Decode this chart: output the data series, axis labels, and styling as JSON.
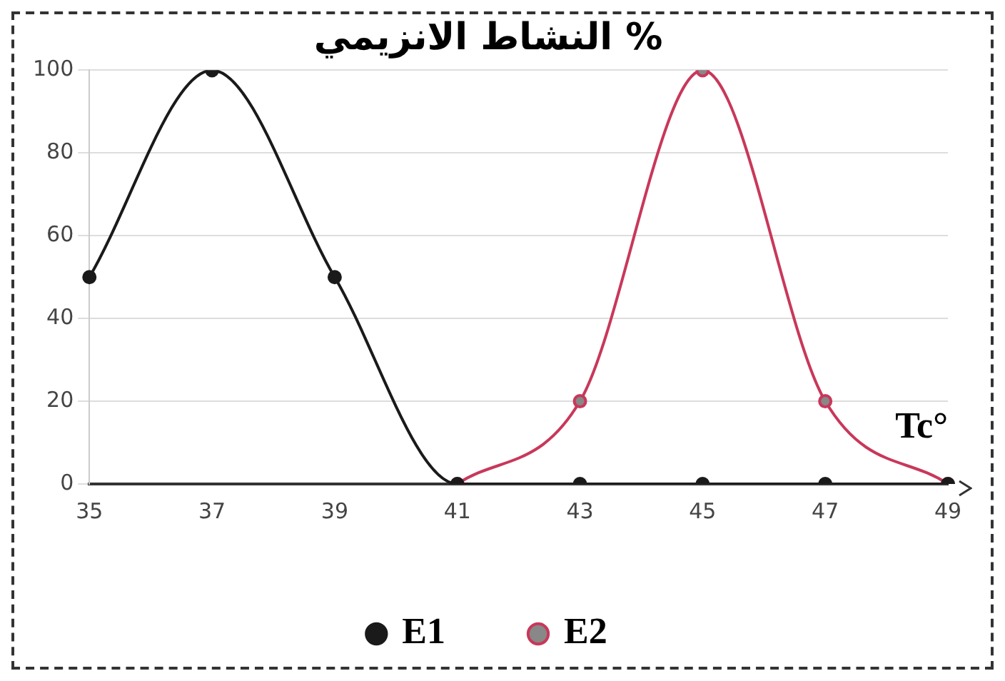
{
  "chart_data": {
    "type": "line",
    "title": "النشاط الانزيمي %",
    "xlabel": "Tc°",
    "categories": [
      "35",
      "37",
      "39",
      "41",
      "43",
      "45",
      "47",
      "49"
    ],
    "series": [
      {
        "name": "E1",
        "color": "#1a1a1a",
        "values": [
          50,
          100,
          50,
          0,
          0,
          0,
          0,
          0
        ]
      },
      {
        "name": "E2",
        "color": "#c8385a",
        "values": [
          null,
          null,
          null,
          0,
          20,
          100,
          20,
          0
        ]
      }
    ],
    "ylim": [
      0,
      100
    ],
    "yticks": [
      0,
      20,
      40,
      60,
      80,
      100
    ],
    "grid": "y",
    "legend": "bottom",
    "marker": "circle",
    "line_style": "solid"
  }
}
